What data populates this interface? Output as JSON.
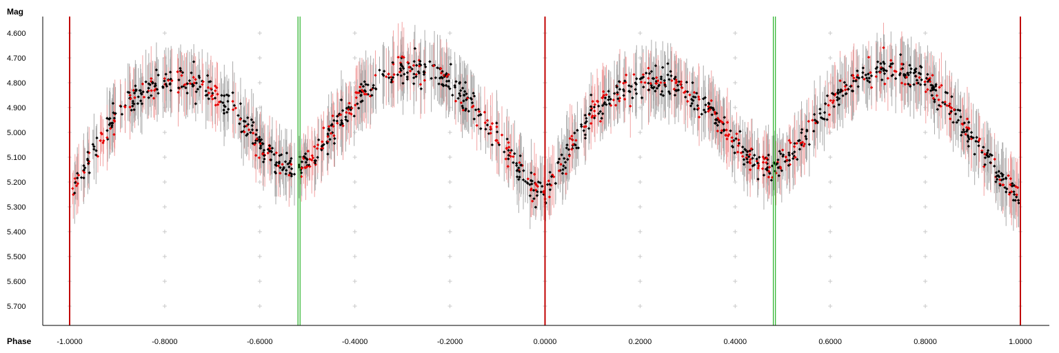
{
  "chart_data": {
    "type": "scatter",
    "ylabel": "Mag",
    "xlabel": "Phase",
    "xlim": [
      -1.06,
      1.06
    ],
    "ylim": [
      5.78,
      4.55
    ],
    "y_inverted": true,
    "x_ticks": [
      "-1.0000",
      "-0.8000",
      "-0.6000",
      "-0.4000",
      "-0.2000",
      "0.0000",
      "0.2000",
      "0.4000",
      "0.6000",
      "0.8000",
      "1.0000"
    ],
    "x_tick_values": [
      -1.0,
      -0.8,
      -0.6,
      -0.4,
      -0.2,
      0.0,
      0.2,
      0.4,
      0.6,
      0.8,
      1.0
    ],
    "y_ticks": [
      "4.600",
      "4.700",
      "4.800",
      "4.900",
      "5.000",
      "5.100",
      "5.200",
      "5.300",
      "5.400",
      "5.500",
      "5.600",
      "5.700"
    ],
    "y_tick_values": [
      4.6,
      4.7,
      4.8,
      4.9,
      5.0,
      5.1,
      5.2,
      5.3,
      5.4,
      5.5,
      5.6,
      5.7
    ],
    "grid": "plus-markers",
    "vertical_markers": [
      {
        "x": -1.0,
        "color": "#c00000"
      },
      {
        "x": 0.0,
        "color": "#c00000"
      },
      {
        "x": 1.0,
        "color": "#c00000"
      },
      {
        "x": -0.5197,
        "color": "#22b022"
      },
      {
        "x": -0.5153,
        "color": "#22b022"
      },
      {
        "x": 0.4803,
        "color": "#22b022"
      },
      {
        "x": 0.4847,
        "color": "#22b022"
      }
    ],
    "curve_profile": {
      "x": [
        0.0,
        0.02,
        0.06,
        0.1,
        0.15,
        0.2,
        0.25,
        0.3,
        0.35,
        0.4,
        0.45,
        0.48,
        0.52,
        0.56,
        0.6,
        0.65,
        0.7,
        0.75,
        0.8,
        0.85,
        0.9,
        0.94,
        0.97,
        1.0
      ],
      "mag": [
        5.25,
        5.18,
        5.05,
        4.92,
        4.84,
        4.8,
        4.79,
        4.83,
        4.92,
        5.05,
        5.13,
        5.15,
        5.08,
        4.98,
        4.88,
        4.79,
        4.74,
        4.75,
        4.8,
        4.9,
        5.02,
        5.14,
        5.22,
        5.25
      ]
    },
    "series": [
      {
        "name": "",
        "color": "#000000",
        "errorbar_color": "#a9a9a9"
      },
      {
        "name": "",
        "color": "#e60000",
        "errorbar_color": "#f2a0a0"
      }
    ]
  }
}
